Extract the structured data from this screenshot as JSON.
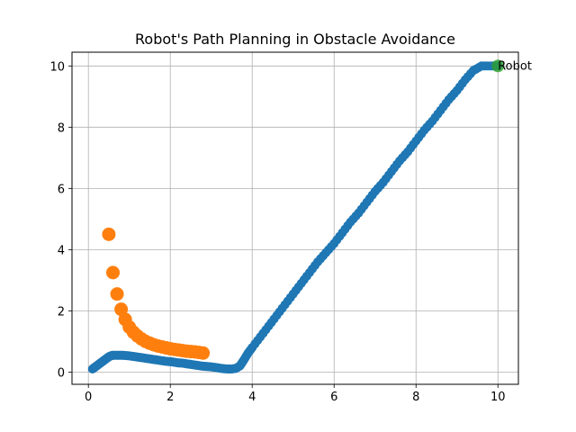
{
  "chart_data": {
    "type": "scatter",
    "title": "Robot's Path Planning in Obstacle Avoidance",
    "xlabel": "",
    "ylabel": "",
    "xlim": [
      -0.4,
      10.5
    ],
    "ylim": [
      -0.4,
      10.45
    ],
    "xticks": [
      0,
      2,
      4,
      6,
      8,
      10
    ],
    "yticks": [
      0,
      2,
      4,
      6,
      8,
      10
    ],
    "grid": true,
    "series": [
      {
        "color": "#1f77b4",
        "marker_size": "small",
        "x": [
          0.1,
          0.15,
          0.2,
          0.25,
          0.3,
          0.35,
          0.4,
          0.45,
          0.5,
          0.55,
          0.6,
          0.7,
          0.8,
          0.9,
          1.0,
          1.1,
          1.2,
          1.3,
          1.4,
          1.5,
          1.6,
          1.7,
          1.8,
          1.9,
          2.0,
          2.1,
          2.2,
          2.3,
          2.4,
          2.5,
          2.6,
          2.7,
          2.8,
          2.9,
          3.0,
          3.1,
          3.2,
          3.3,
          3.4,
          3.5,
          3.6,
          3.7,
          3.8,
          3.9,
          4.0,
          4.2,
          4.4,
          4.6,
          4.8,
          5.0,
          5.2,
          5.4,
          5.6,
          5.8,
          6.0,
          6.2,
          6.4,
          6.6,
          6.8,
          7.0,
          7.2,
          7.4,
          7.6,
          7.8,
          8.0,
          8.2,
          8.4,
          8.6,
          8.8,
          9.0,
          9.2,
          9.4,
          9.6,
          9.8,
          10.0
        ],
        "y": [
          0.1,
          0.15,
          0.2,
          0.25,
          0.3,
          0.35,
          0.4,
          0.45,
          0.5,
          0.53,
          0.55,
          0.55,
          0.55,
          0.54,
          0.53,
          0.51,
          0.49,
          0.47,
          0.45,
          0.43,
          0.41,
          0.39,
          0.37,
          0.35,
          0.34,
          0.32,
          0.3,
          0.29,
          0.27,
          0.25,
          0.23,
          0.21,
          0.19,
          0.18,
          0.17,
          0.15,
          0.13,
          0.11,
          0.1,
          0.1,
          0.12,
          0.2,
          0.4,
          0.62,
          0.8,
          1.15,
          1.5,
          1.85,
          2.2,
          2.55,
          2.9,
          3.25,
          3.6,
          3.9,
          4.2,
          4.55,
          4.9,
          5.2,
          5.55,
          5.9,
          6.2,
          6.55,
          6.9,
          7.2,
          7.55,
          7.9,
          8.2,
          8.55,
          8.9,
          9.2,
          9.55,
          9.85,
          10.0,
          10.0,
          10.0
        ]
      },
      {
        "color": "#ff7f0e",
        "marker_size": "large",
        "x": [
          0.5,
          0.6,
          0.7,
          0.8,
          0.9,
          1.0,
          1.1,
          1.2,
          1.3,
          1.4,
          1.5,
          1.6,
          1.7,
          1.8,
          1.9,
          2.0,
          2.1,
          2.2,
          2.3,
          2.4,
          2.5,
          2.6,
          2.7,
          2.8
        ],
        "y": [
          4.5,
          3.25,
          2.55,
          2.05,
          1.72,
          1.47,
          1.3,
          1.18,
          1.08,
          1.0,
          0.94,
          0.89,
          0.85,
          0.82,
          0.79,
          0.76,
          0.74,
          0.72,
          0.7,
          0.68,
          0.67,
          0.66,
          0.64,
          0.62
        ]
      },
      {
        "color": "#2ca02c",
        "marker_size": "medium",
        "x": [
          10.0
        ],
        "y": [
          10.0
        ]
      }
    ],
    "annotations": [
      {
        "text": "Robot",
        "x": 10.0,
        "y": 10.0
      }
    ]
  }
}
